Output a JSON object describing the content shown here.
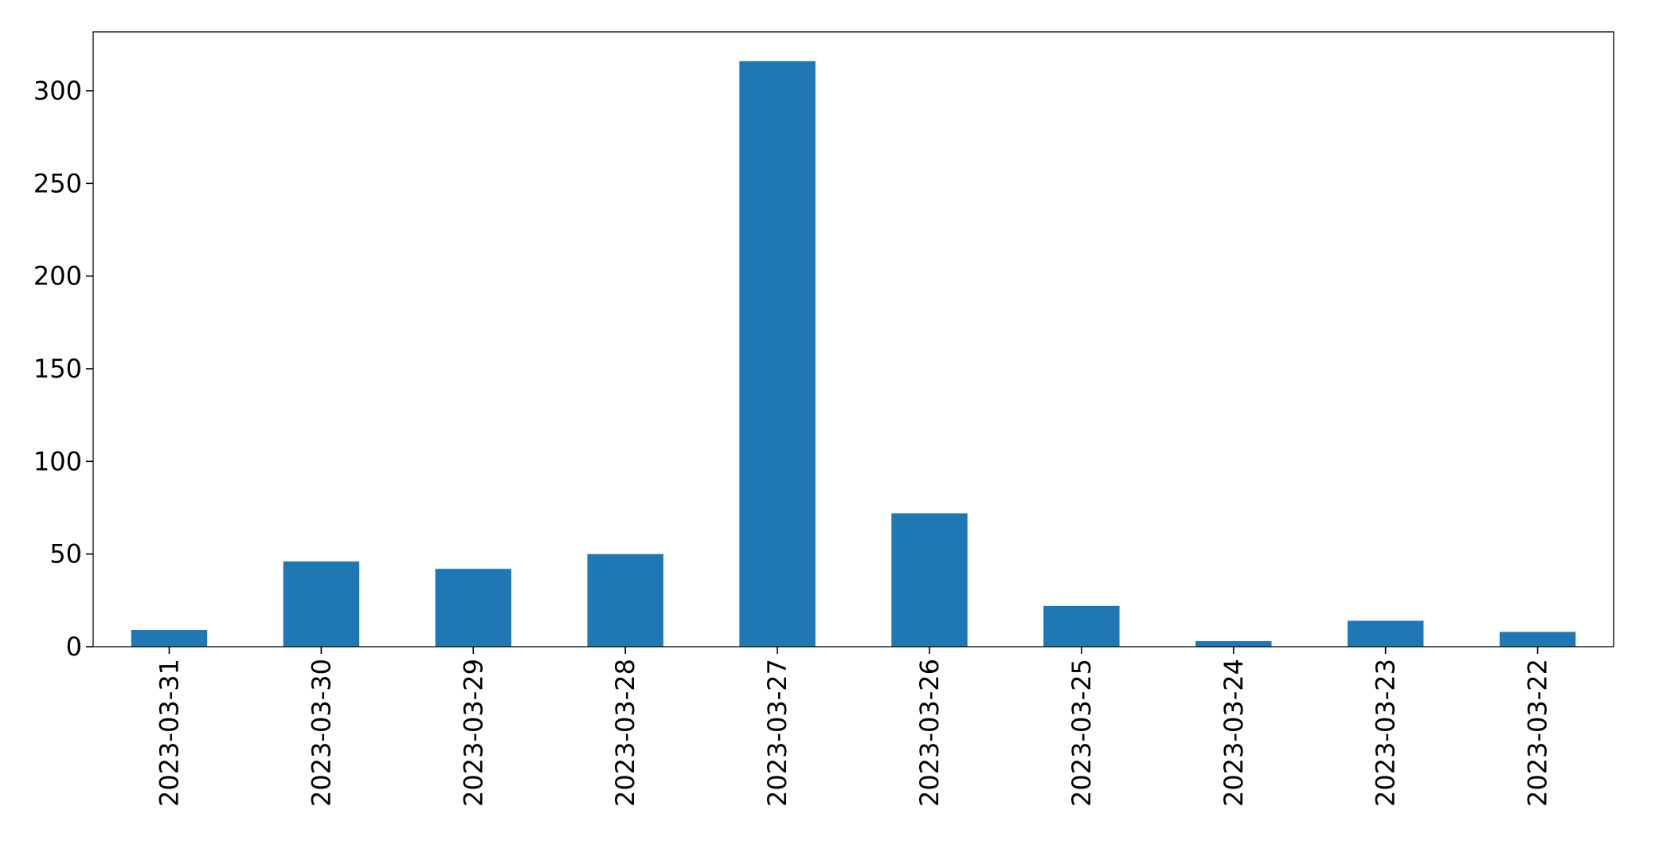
{
  "chart_data": {
    "type": "bar",
    "title": "",
    "xlabel": "",
    "ylabel": "",
    "categories": [
      "2023-03-31",
      "2023-03-30",
      "2023-03-29",
      "2023-03-28",
      "2023-03-27",
      "2023-03-26",
      "2023-03-25",
      "2023-03-24",
      "2023-03-23",
      "2023-03-22"
    ],
    "values": [
      9,
      46,
      42,
      50,
      316,
      72,
      22,
      3,
      14,
      8
    ],
    "yticks": [
      0,
      50,
      100,
      150,
      200,
      250,
      300
    ],
    "ylim": [
      0,
      331.8
    ],
    "grid": false,
    "legend": "none",
    "bar_color": "#1f77b4"
  }
}
